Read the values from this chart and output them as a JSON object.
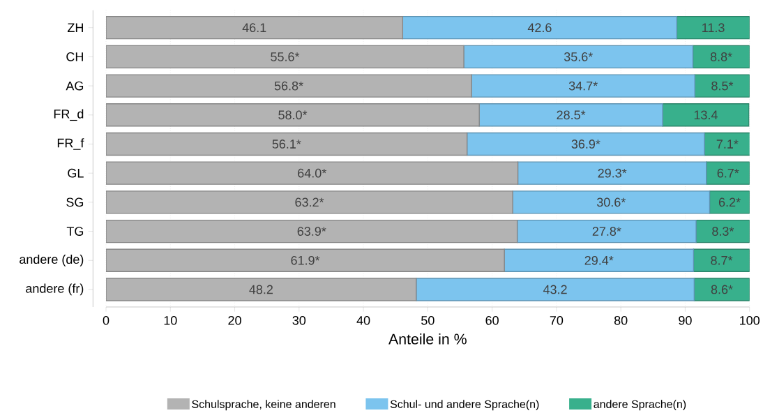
{
  "chart_data": {
    "type": "bar",
    "orientation": "horizontal",
    "stacked": true,
    "categories": [
      "ZH",
      "CH",
      "AG",
      "FR_d",
      "FR_f",
      "GL",
      "SG",
      "TG",
      "andere (de)",
      "andere (fr)"
    ],
    "series": [
      {
        "name": "Schulsprache, keine anderen",
        "color": "#b3b3b3",
        "values": [
          46.1,
          55.6,
          56.8,
          58.0,
          56.1,
          64.0,
          63.2,
          63.9,
          61.9,
          48.2
        ],
        "value_labels": [
          "46.1",
          "55.6*",
          "56.8*",
          "58.0*",
          "56.1*",
          "64.0*",
          "63.2*",
          "63.9*",
          "61.9*",
          "48.2"
        ]
      },
      {
        "name": "Schul- und andere Sprache(n)",
        "color": "#7cc4ee",
        "values": [
          42.6,
          35.6,
          34.7,
          28.5,
          36.9,
          29.3,
          30.6,
          27.8,
          29.4,
          43.2
        ],
        "value_labels": [
          "42.6",
          "35.6*",
          "34.7*",
          "28.5*",
          "36.9*",
          "29.3*",
          "30.6*",
          "27.8*",
          "29.4*",
          "43.2"
        ]
      },
      {
        "name": "andere Sprache(n)",
        "color": "#38b08c",
        "values": [
          11.3,
          8.8,
          8.5,
          13.4,
          7.1,
          6.7,
          6.2,
          8.3,
          8.7,
          8.6
        ],
        "value_labels": [
          "11.3",
          "8.8*",
          "8.5*",
          "13.4",
          "7.1*",
          "6.7*",
          "6.2*",
          "8.3*",
          "8.7*",
          "8.6*"
        ]
      }
    ],
    "xlabel": "Anteile in %",
    "xlim": [
      0,
      100
    ],
    "xticks": [
      0,
      10,
      20,
      30,
      40,
      50,
      60,
      70,
      80,
      90,
      100
    ],
    "grid": "x",
    "legend": "bottom"
  }
}
